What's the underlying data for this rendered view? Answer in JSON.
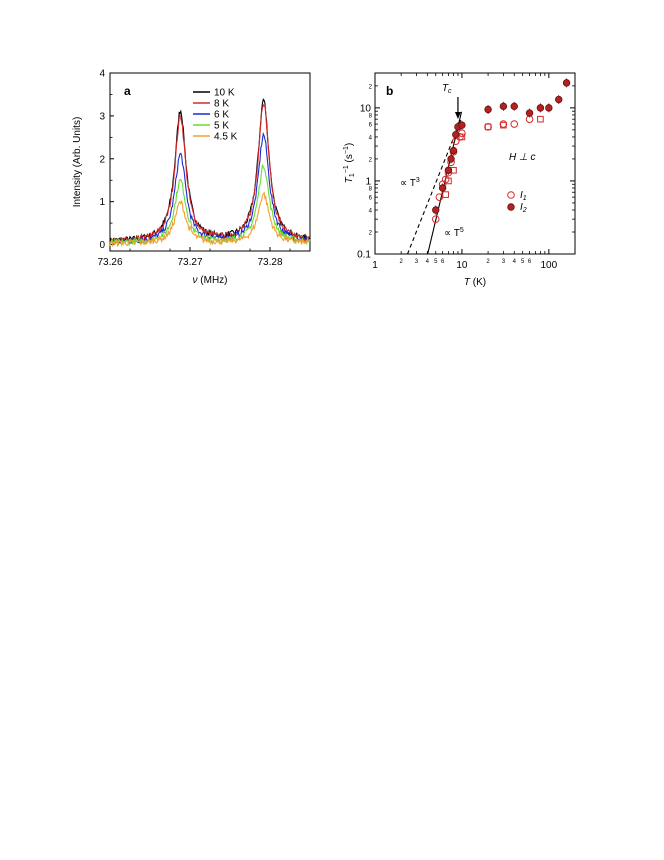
{
  "chart_data": [
    {
      "type": "line",
      "panel_label": "a",
      "title": "",
      "xlabel_symbol": "ν",
      "xlabel_unit": "(MHz)",
      "ylabel": "Intensity (Arb. Units)",
      "xlim": [
        73.26,
        73.285
      ],
      "ylim": [
        -0.15,
        4
      ],
      "xticks": [
        "73.26",
        "73.27",
        "73.28"
      ],
      "xtick_values": [
        73.26,
        73.27,
        73.28
      ],
      "yticks": [
        "0",
        "1",
        "2",
        "3",
        "4"
      ],
      "ytick_values": [
        0,
        1,
        2,
        3,
        4
      ],
      "legend_position": "top-center",
      "peak_centers": [
        73.2688,
        73.2792
      ],
      "series": [
        {
          "name": "10 K",
          "color": "#000000",
          "peak_heights": [
            3.05,
            3.3
          ]
        },
        {
          "name": "8 K",
          "color": "#d62a2a",
          "peak_heights": [
            2.92,
            3.25
          ]
        },
        {
          "name": "6 K",
          "color": "#1a2bd6",
          "peak_heights": [
            2.05,
            2.5
          ]
        },
        {
          "name": "5 K",
          "color": "#66dd33",
          "peak_heights": [
            1.45,
            1.8
          ]
        },
        {
          "name": "4.5 K",
          "color": "#f0a030",
          "peak_heights": [
            0.95,
            1.15
          ]
        }
      ]
    },
    {
      "type": "scatter",
      "panel_label": "b",
      "scale": "log-log",
      "xlabel_symbol": "T",
      "xlabel_unit": "(K)",
      "ylabel_symbol": "T",
      "ylabel_sup": "−1",
      "ylabel_sub": "1",
      "ylabel_unit_pre": "(s",
      "ylabel_unit_sup": "−1",
      "ylabel_unit_post": ")",
      "xlim": [
        1,
        200
      ],
      "ylim": [
        0.1,
        30
      ],
      "xticks": [
        "1",
        "10",
        "100"
      ],
      "xtick_values": [
        1,
        10,
        100
      ],
      "minor_xtick_labels": [
        "2",
        "3",
        "4",
        "5",
        "6",
        "2",
        "3",
        "4",
        "5",
        "6"
      ],
      "minor_xtick_values": [
        2,
        3,
        4,
        5,
        6,
        20,
        30,
        40,
        50,
        60
      ],
      "yticks": [
        "0.1",
        "1",
        "10"
      ],
      "ytick_values": [
        0.1,
        1,
        10
      ],
      "minor_ytick_labels": [
        "2",
        "4",
        "6",
        "8",
        "2",
        "4",
        "6",
        "8",
        "2"
      ],
      "minor_ytick_values": [
        0.2,
        0.4,
        0.6,
        0.8,
        2,
        4,
        6,
        8,
        20
      ],
      "annotations": {
        "tc_label": "T",
        "tc_sub": "c",
        "tc_temperature": 9,
        "field_label": "H ⊥ c",
        "t3_label_pre": "∝ T",
        "t3_sup": "3",
        "t5_label_pre": "∝ T",
        "t5_sup": "5"
      },
      "power_laws": [
        {
          "exponent": 3,
          "style": "dashed",
          "anchor_T": 9,
          "anchor_rate": 5.5
        },
        {
          "exponent": 5,
          "style": "solid",
          "anchor_T": 9,
          "anchor_rate": 5.5
        }
      ],
      "legend_position": "right",
      "series": [
        {
          "name": "I",
          "sub": "1",
          "marker": "open-circle",
          "color": "#d62a2a",
          "points": [
            [
              5,
              0.3
            ],
            [
              5.5,
              0.6
            ],
            [
              6,
              0.9
            ],
            [
              6.5,
              1.05
            ],
            [
              7,
              1.3
            ],
            [
              7.5,
              1.8
            ],
            [
              8,
              2.5
            ],
            [
              8.5,
              3.5
            ],
            [
              9.5,
              4.0
            ],
            [
              10,
              4.5
            ],
            [
              20,
              5.5
            ],
            [
              30,
              6.0
            ],
            [
              40,
              6.0
            ],
            [
              60,
              7.0
            ]
          ]
        },
        {
          "name": "",
          "marker": "open-square",
          "color": "#d62a2a",
          "points": [
            [
              6.5,
              0.65
            ],
            [
              7,
              1.0
            ],
            [
              8,
              1.4
            ],
            [
              10,
              4.0
            ],
            [
              20,
              5.5
            ],
            [
              30,
              5.8
            ],
            [
              80,
              7.0
            ]
          ]
        },
        {
          "name": "I",
          "sub": "2",
          "marker": "filled-circle",
          "color": "#b22222",
          "points": [
            [
              5,
              0.4
            ],
            [
              6,
              0.8
            ],
            [
              7,
              1.4
            ],
            [
              7.5,
              2.0
            ],
            [
              8,
              2.6
            ],
            [
              8.5,
              4.3
            ],
            [
              9,
              5.5
            ],
            [
              10,
              5.8
            ],
            [
              20,
              9.5
            ],
            [
              30,
              10.5
            ],
            [
              40,
              10.5
            ],
            [
              60,
              8.5
            ],
            [
              80,
              10.0
            ],
            [
              100,
              10.0
            ],
            [
              130,
              13.0
            ],
            [
              160,
              22.0
            ]
          ]
        }
      ]
    }
  ]
}
